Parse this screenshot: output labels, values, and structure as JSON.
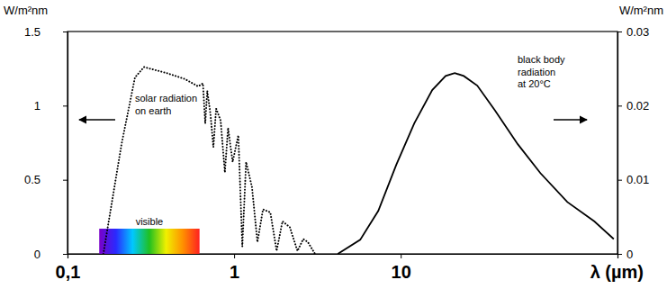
{
  "chart_data": {
    "type": "line",
    "log": "x",
    "grid": false,
    "xlabel": "λ (µm)",
    "ylabel": "W/m²nm",
    "y2label": "W/m²nm",
    "xlim": [
      0.1,
      200
    ],
    "xticks": [
      {
        "value": 0.1,
        "label": "0,1"
      },
      1,
      10
    ],
    "ylim": [
      0,
      1.5
    ],
    "yticks": [
      0,
      0.5,
      1,
      1.5
    ],
    "y2lim": [
      0,
      0.03
    ],
    "y2ticks": [
      0,
      0.01,
      0.02,
      0.03
    ],
    "series": [
      {
        "name": "solar radiation on earth",
        "axis": "y",
        "color": "#000000",
        "line_style": "dotted",
        "x": [
          0.164,
          0.211,
          0.254,
          0.288,
          0.393,
          0.505,
          0.608,
          0.65,
          0.671,
          0.69,
          0.72,
          0.751,
          0.78,
          0.83,
          0.88,
          0.92,
          0.98,
          1.06,
          1.12,
          1.18,
          1.28,
          1.38,
          1.49,
          1.65,
          1.8,
          1.95,
          2.16,
          2.4,
          2.6,
          2.77,
          3.06
        ],
        "values": [
          0,
          0.74,
          1.19,
          1.26,
          1.22,
          1.18,
          1.13,
          1.15,
          0.88,
          1.1,
          0.95,
          0.72,
          0.98,
          0.9,
          0.55,
          0.85,
          0.62,
          0.8,
          0.05,
          0.62,
          0.45,
          0.08,
          0.3,
          0.28,
          0.02,
          0.22,
          0.18,
          0.02,
          0.1,
          0.08,
          0
        ]
      },
      {
        "name": "black body radiation at 20°C",
        "axis": "y2",
        "color": "#000000",
        "line_style": "solid",
        "x": [
          4.19,
          5.71,
          7.33,
          9.4,
          12.05,
          15.45,
          18.6,
          21.1,
          23.9,
          28.8,
          36.9,
          50.4,
          68.9,
          100,
          145,
          190
        ],
        "values": [
          0,
          0.0019,
          0.0058,
          0.012,
          0.0176,
          0.0221,
          0.024,
          0.0244,
          0.024,
          0.0227,
          0.0193,
          0.0148,
          0.0109,
          0.007,
          0.0044,
          0.002
        ]
      }
    ],
    "visible_band": {
      "label": "visible",
      "range": [
        0.155,
        0.62
      ]
    }
  }
}
